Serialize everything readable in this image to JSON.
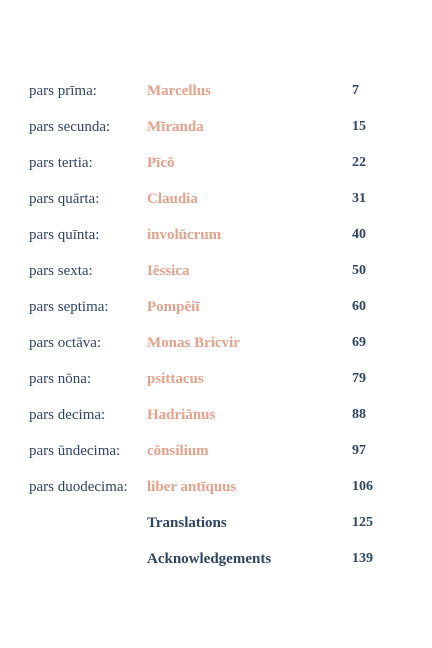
{
  "colors": {
    "chapter_title": "#e5a189",
    "text": "#2f4663",
    "background": "#ffffff"
  },
  "toc": {
    "entries": [
      {
        "part": "pars prīma:",
        "title": "Marcellus",
        "page": "7"
      },
      {
        "part": "pars secunda:",
        "title": "Mīranda",
        "page": "15"
      },
      {
        "part": "pars tertia:",
        "title": "Pīcō",
        "page": "22"
      },
      {
        "part": "pars quārta:",
        "title": "Claudia",
        "page": "31"
      },
      {
        "part": "pars quīnta:",
        "title": "involūcrum",
        "page": "40"
      },
      {
        "part": "pars sexta:",
        "title": "Iēssica",
        "page": "50"
      },
      {
        "part": "pars septima:",
        "title": "Pompēiī",
        "page": "60"
      },
      {
        "part": "pars octāva:",
        "title": "Monas Bricvir",
        "page": "69"
      },
      {
        "part": "pars nōna:",
        "title": "psittacus",
        "page": "79"
      },
      {
        "part": "pars decima:",
        "title": "Hadriānus",
        "page": "88"
      },
      {
        "part": "pars ūndecima:",
        "title": "cōnsilium",
        "page": "97"
      },
      {
        "part": "pars duodecima:",
        "title": "liber antīquus",
        "page": "106"
      }
    ],
    "back_matter": [
      {
        "title": "Translations",
        "page": "125"
      },
      {
        "title": "Acknowledgements",
        "page": "139"
      }
    ]
  }
}
